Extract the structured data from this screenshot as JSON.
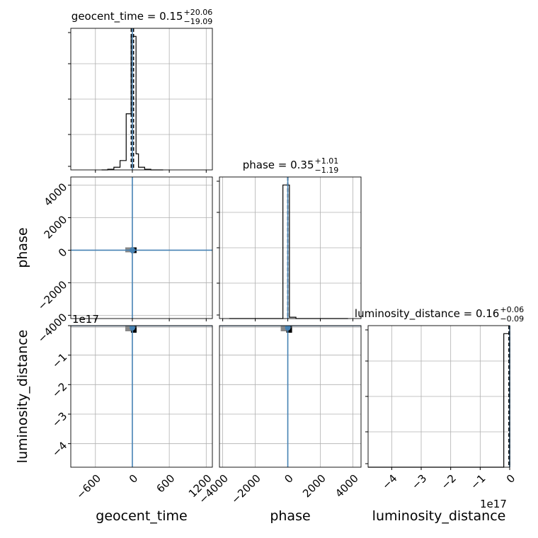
{
  "chart_data": {
    "type": "corner",
    "parameters": [
      "geocent_time",
      "phase",
      "luminosity_distance"
    ],
    "colors": {
      "hist": "#000000",
      "truth": "#4682b4",
      "frame": "#000000",
      "grid": "#b0b0b0"
    },
    "titles": [
      {
        "param": "geocent_time",
        "prefix": "geocent_time = 0.15",
        "plus": "+20.06",
        "minus": "−19.09"
      },
      {
        "param": "phase",
        "prefix": "phase = 0.35",
        "plus": "+1.01",
        "minus": "−1.19"
      },
      {
        "param": "luminosity_distance",
        "prefix": "luminosity_distance = 0.16",
        "plus": "+0.06",
        "minus": "−0.09"
      }
    ],
    "axes": {
      "geocent_time": {
        "range": [
          -1000,
          1300
        ],
        "ticks": [
          -600,
          0,
          600,
          1200
        ],
        "tick_labels": [
          "−600",
          "0",
          "600",
          "1200"
        ],
        "label": "geocent_time"
      },
      "phase": {
        "range": [
          -4200,
          4500
        ],
        "ticks": [
          -4000,
          -2000,
          0,
          2000,
          4000
        ],
        "tick_labels": [
          "−4000",
          "−2000",
          "0",
          "2000",
          "4000"
        ],
        "label": "phase"
      },
      "luminosity_distance": {
        "range": [
          -4.8,
          0
        ],
        "ticks": [
          -4,
          -3,
          -2,
          -1,
          0
        ],
        "tick_labels": [
          "−4",
          "−3",
          "−2",
          "−1",
          "0"
        ],
        "label": "luminosity_distance",
        "offset_text": "1e17"
      }
    },
    "hist_geocent_time": {
      "edges": [
        -500,
        -400,
        -300,
        -200,
        -100,
        -20,
        60,
        100,
        200,
        300,
        400,
        500
      ],
      "values": [
        0,
        0.005,
        0.02,
        0.07,
        0.42,
        1.0,
        0.12,
        0.02,
        0.005,
        0.0,
        0.0
      ],
      "median": 0.15,
      "q_low": -18.94,
      "q_high": 20.21
    },
    "hist_phase": {
      "edges": [
        -3600,
        -2800,
        -2000,
        -1200,
        -300,
        100,
        500,
        1300,
        2100,
        2900,
        3700
      ],
      "values": [
        0,
        0,
        0,
        0.0,
        1.0,
        0.01,
        0,
        0,
        0,
        0
      ],
      "median": 0.35,
      "q_low": -0.84,
      "q_high": 1.36
    },
    "hist_luminosity_distance": {
      "edges": [
        -4.8,
        -0.2,
        -0.05,
        0
      ],
      "values": [
        0,
        1.0,
        1.0
      ],
      "median": 0.16,
      "q_low": 0.07,
      "q_high": 0.22
    },
    "truths": {
      "geocent_time": 0,
      "phase": 0,
      "luminosity_distance": 0
    },
    "density_blobs": [
      {
        "panel": "phase_vs_geocent_time",
        "x": 0,
        "y": 0
      },
      {
        "panel": "luminosity_distance_vs_geocent_time",
        "x": 0,
        "y": -0.05
      },
      {
        "panel": "luminosity_distance_vs_phase",
        "x": 0,
        "y": -0.05
      }
    ]
  }
}
